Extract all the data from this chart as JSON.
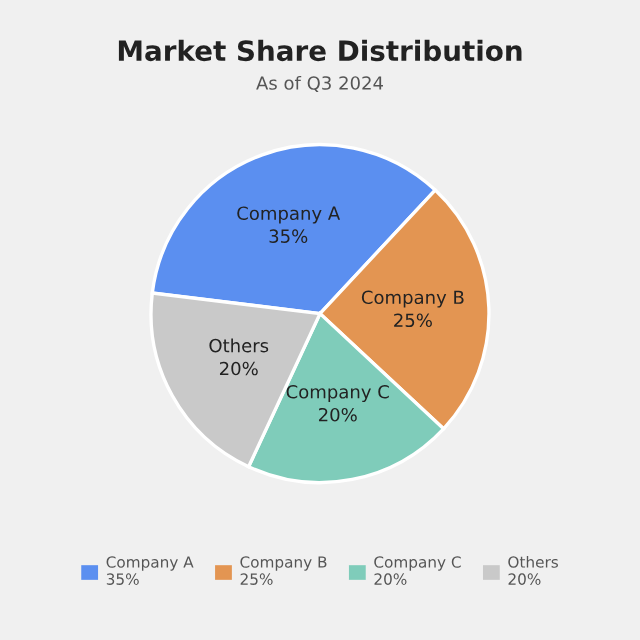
{
  "chart_data": {
    "type": "pie",
    "title": "Market Share Distribution",
    "subtitle": "As of Q3 2024",
    "categories": [
      "Company A",
      "Company B",
      "Company C",
      "Others"
    ],
    "values": [
      35,
      25,
      20,
      20
    ],
    "colors": [
      "#5b8ff0",
      "#e39552",
      "#7fccba",
      "#c9c9c9"
    ],
    "value_labels": [
      "35%",
      "25%",
      "20%",
      "20%"
    ],
    "legend": "bottom"
  }
}
